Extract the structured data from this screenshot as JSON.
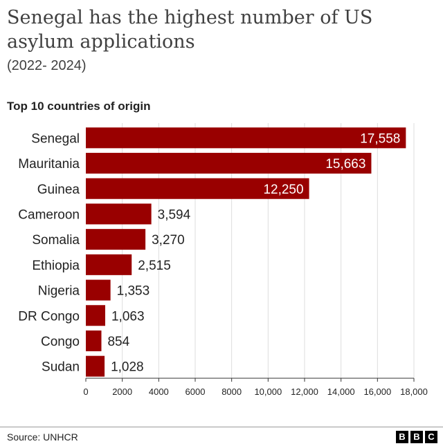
{
  "title": "Senegal has the highest number of US asylum applications",
  "subtitle": "(2022- 2024)",
  "chart_heading": "Top 10 countries of origin",
  "source": "Source: UNHCR",
  "logo": [
    "B",
    "B",
    "C"
  ],
  "colors": {
    "bar": "#990000",
    "grid": "#dddddd",
    "axis": "#333333"
  },
  "chart_data": {
    "type": "bar",
    "orientation": "horizontal",
    "categories": [
      "Senegal",
      "Mauritania",
      "Guinea",
      "Cameroon",
      "Somalia",
      "Ethiopia",
      "Nigeria",
      "DR Congo",
      "Congo",
      "Sudan"
    ],
    "values": [
      17558,
      15663,
      12250,
      3594,
      3270,
      2515,
      1353,
      1063,
      854,
      1028
    ],
    "value_labels": [
      "17,558",
      "15,663",
      "12,250",
      "3,594",
      "3,270",
      "2,515",
      "1,353",
      "1,063",
      "854",
      "1,028"
    ],
    "xlim": [
      0,
      18000
    ],
    "x_ticks": [
      0,
      2000,
      4000,
      6000,
      8000,
      10000,
      12000,
      14000,
      16000,
      18000
    ],
    "x_tick_labels": [
      "0",
      "2000",
      "4000",
      "6000",
      "8000",
      "10,000",
      "12,000",
      "14,000",
      "16,000",
      "18,000"
    ],
    "grid": true,
    "legend": "none"
  }
}
